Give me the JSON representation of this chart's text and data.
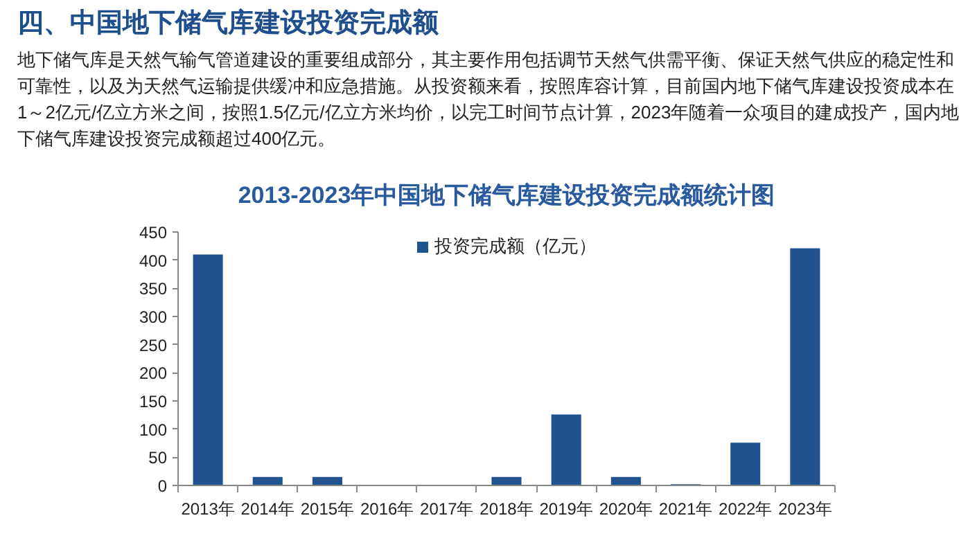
{
  "chart_data": {
    "type": "bar",
    "title": "2013-2023年中国地下储气库建设投资完成额统计图",
    "subtitle": "地下储气库是天然气输气管道建设的重要组成部分，其主要作用包括调节天然气供需平衡、保证天然气供应的稳定性和可靠性，以及为天然气运输提供缓冲和应急措施。从投资额来看，按照库容计算，目前国内地下储气库建设投资成本在1～2亿元/亿立方米之间，按照1.5亿元/亿立方米均价，以完工时间节点计算，2023年随着一众项目的建成投产，国内地下储气库建设投资完成额超过400亿元。",
    "annotations": [
      "四、中国地下储气库建设投资完成额"
    ],
    "categories": [
      "2013年",
      "2014年",
      "2015年",
      "2016年",
      "2017年",
      "2018年",
      "2019年",
      "2020年",
      "2021年",
      "2022年",
      "2023年"
    ],
    "series": [
      {
        "name": "投资完成额（亿元）",
        "color": "#21548f",
        "values": [
          410,
          15,
          15,
          0,
          0,
          15,
          126,
          15,
          2,
          76,
          421
        ]
      }
    ],
    "ylim": [
      0,
      450
    ],
    "yticks": [
      0,
      50,
      100,
      150,
      200,
      250,
      300,
      350,
      400,
      450
    ],
    "legend": "top",
    "grid": false
  }
}
